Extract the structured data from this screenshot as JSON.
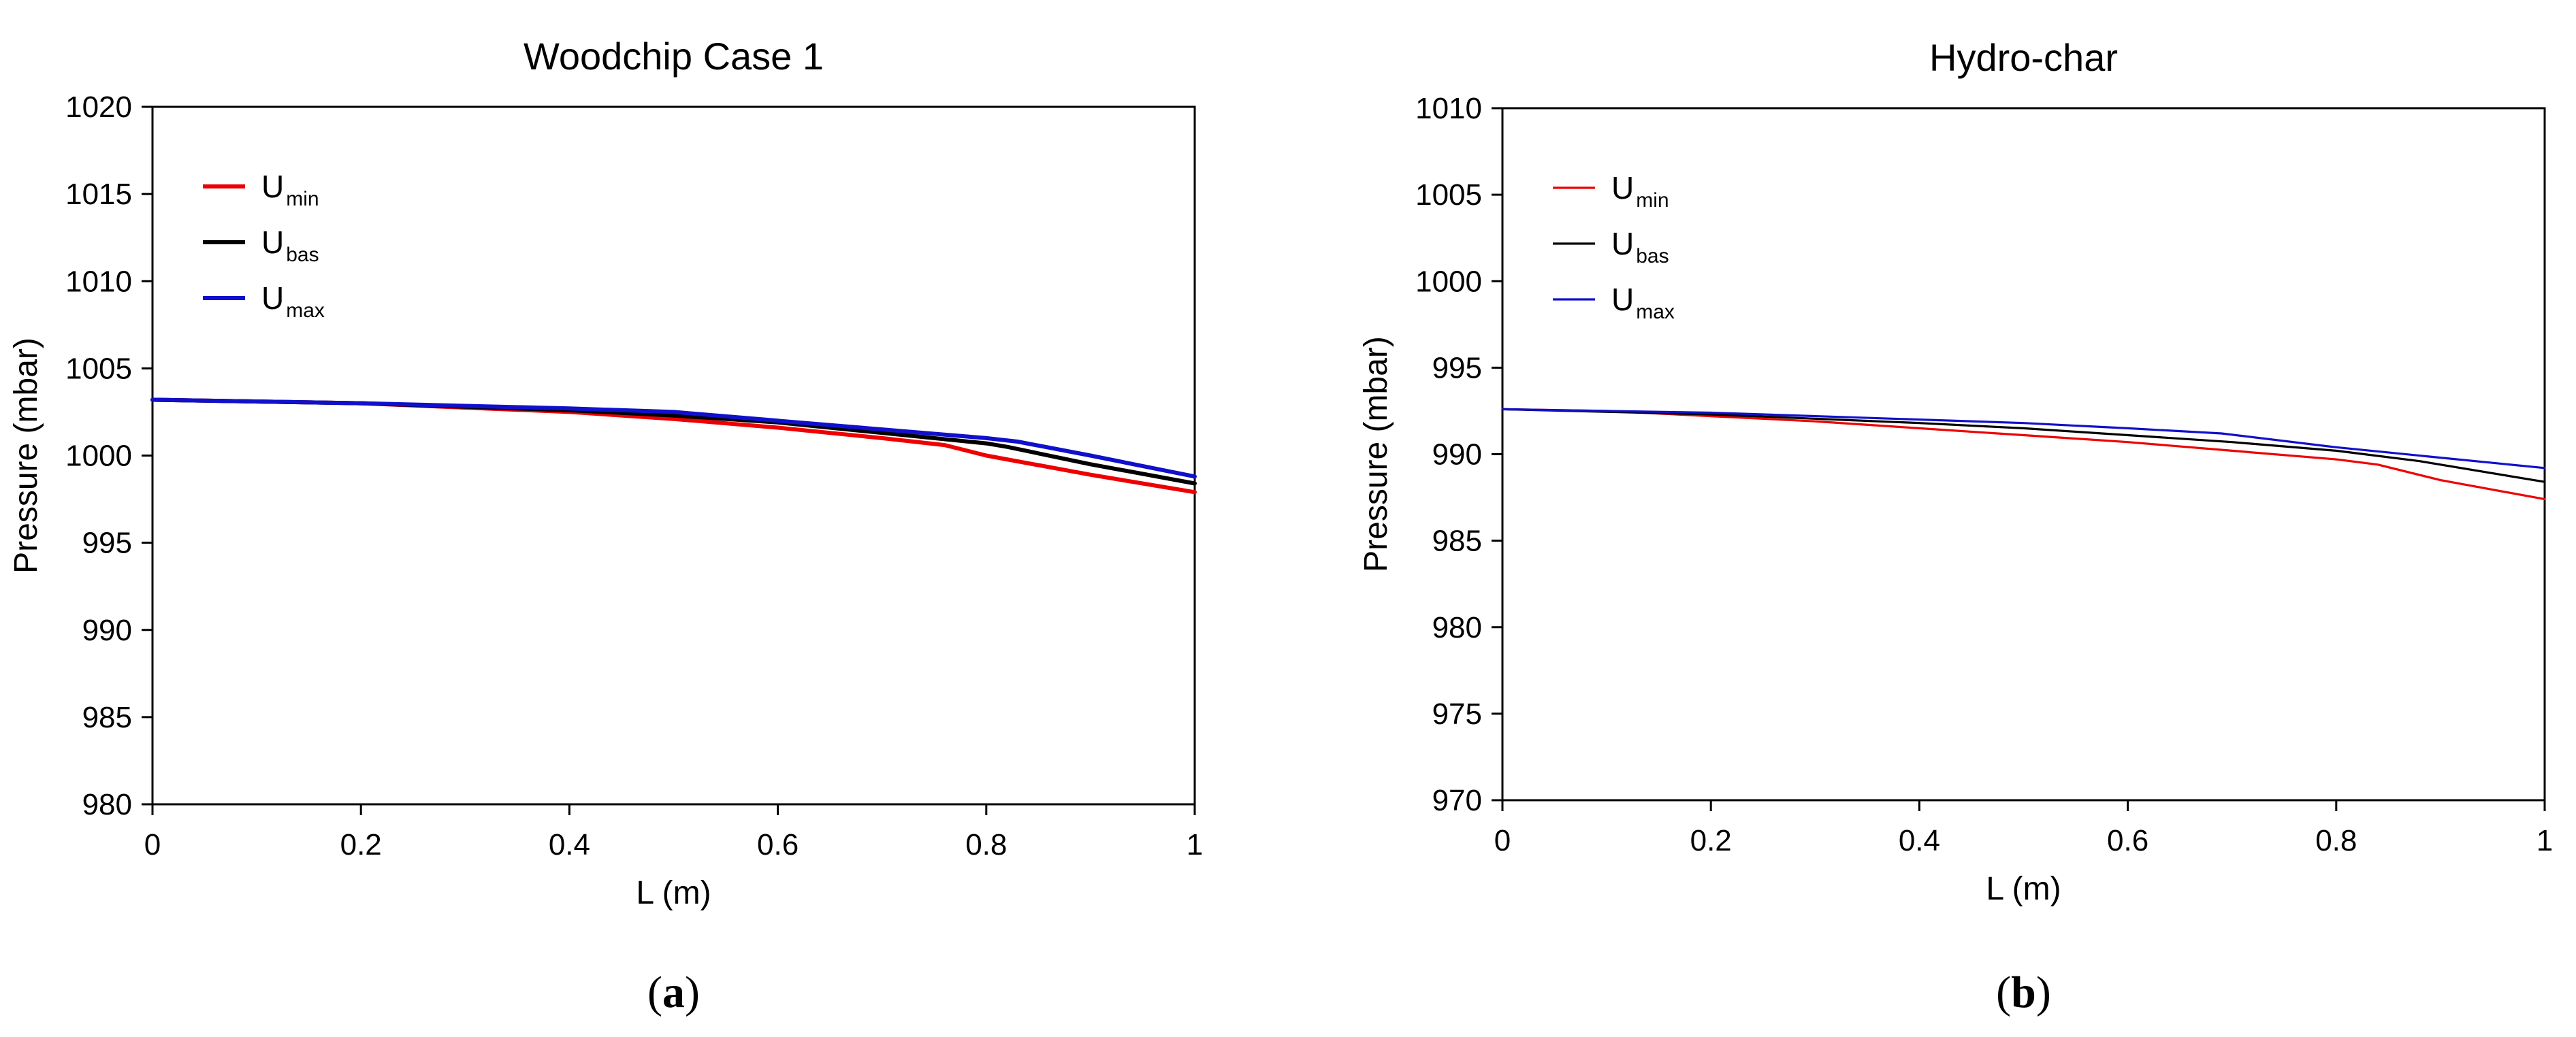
{
  "chart_data": [
    {
      "type": "line",
      "panel_label": "a",
      "title": "Woodchip Case 1",
      "xlabel": "L (m)",
      "ylabel": "Pressure (mbar)",
      "xlim": [
        0,
        1
      ],
      "ylim": [
        980,
        1020
      ],
      "xticks": [
        0,
        0.2,
        0.4,
        0.6,
        0.8,
        1
      ],
      "xtick_labels": [
        "0",
        "0.2",
        "0.4",
        "0.6",
        "0.8",
        "1"
      ],
      "yticks": [
        980,
        985,
        990,
        995,
        1000,
        1005,
        1010,
        1015,
        1020
      ],
      "ytick_labels": [
        "980",
        "985",
        "990",
        "995",
        "1000",
        "1005",
        "1010",
        "1015",
        "1020"
      ],
      "grid": false,
      "legend_position": "top-left",
      "series": [
        {
          "label": "U",
          "label_sub": "min",
          "color": "#ee0000",
          "x": [
            0,
            0.2,
            0.4,
            0.5,
            0.6,
            0.7,
            0.76,
            0.8,
            0.9,
            1.0
          ],
          "y": [
            1003.2,
            1003.0,
            1002.5,
            1002.1,
            1001.6,
            1001.0,
            1000.6,
            1000.0,
            998.9,
            997.9
          ]
        },
        {
          "label": "U",
          "label_sub": "bas",
          "color": "#000000",
          "x": [
            0,
            0.2,
            0.4,
            0.5,
            0.6,
            0.7,
            0.8,
            0.82,
            0.9,
            1.0
          ],
          "y": [
            1003.2,
            1003.0,
            1002.6,
            1002.3,
            1001.9,
            1001.3,
            1000.7,
            1000.5,
            999.5,
            998.4
          ]
        },
        {
          "label": "U",
          "label_sub": "max",
          "color": "#1010cc",
          "x": [
            0,
            0.2,
            0.4,
            0.5,
            0.6,
            0.7,
            0.8,
            0.83,
            0.9,
            1.0
          ],
          "y": [
            1003.2,
            1003.0,
            1002.7,
            1002.5,
            1002.0,
            1001.5,
            1001.0,
            1000.8,
            1000.0,
            998.8
          ]
        }
      ]
    },
    {
      "type": "line",
      "panel_label": "b",
      "title": "Hydro-char",
      "xlabel": "L (m)",
      "ylabel": "Pressure (mbar)",
      "xlim": [
        0,
        1
      ],
      "ylim": [
        970,
        1010
      ],
      "xticks": [
        0,
        0.2,
        0.4,
        0.6,
        0.8,
        1
      ],
      "xtick_labels": [
        "0",
        "0.2",
        "0.4",
        "0.6",
        "0.8",
        "1"
      ],
      "yticks": [
        970,
        975,
        980,
        985,
        990,
        995,
        1000,
        1005,
        1010
      ],
      "ytick_labels": [
        "970",
        "975",
        "980",
        "985",
        "990",
        "995",
        "1000",
        "1005",
        "1010"
      ],
      "grid": false,
      "legend_position": "top-left",
      "series": [
        {
          "label": "U",
          "label_sub": "min",
          "color": "#ee0000",
          "x": [
            0,
            0.1,
            0.2,
            0.3,
            0.4,
            0.5,
            0.6,
            0.7,
            0.8,
            0.84,
            0.9,
            1.0
          ],
          "y": [
            992.6,
            992.5,
            992.2,
            991.9,
            991.5,
            991.1,
            990.7,
            990.2,
            989.7,
            989.4,
            988.5,
            987.4
          ]
        },
        {
          "label": "U",
          "label_sub": "bas",
          "color": "#000000",
          "x": [
            0,
            0.2,
            0.4,
            0.5,
            0.6,
            0.7,
            0.8,
            0.88,
            0.9,
            1.0
          ],
          "y": [
            992.6,
            992.3,
            991.8,
            991.5,
            991.1,
            990.7,
            990.2,
            989.6,
            989.4,
            988.4
          ]
        },
        {
          "label": "U",
          "label_sub": "max",
          "color": "#1010cc",
          "x": [
            0,
            0.2,
            0.4,
            0.5,
            0.6,
            0.69,
            0.8,
            0.9,
            1.0
          ],
          "y": [
            992.6,
            992.4,
            992.0,
            991.8,
            991.5,
            991.2,
            990.4,
            989.8,
            989.2
          ]
        }
      ]
    }
  ]
}
